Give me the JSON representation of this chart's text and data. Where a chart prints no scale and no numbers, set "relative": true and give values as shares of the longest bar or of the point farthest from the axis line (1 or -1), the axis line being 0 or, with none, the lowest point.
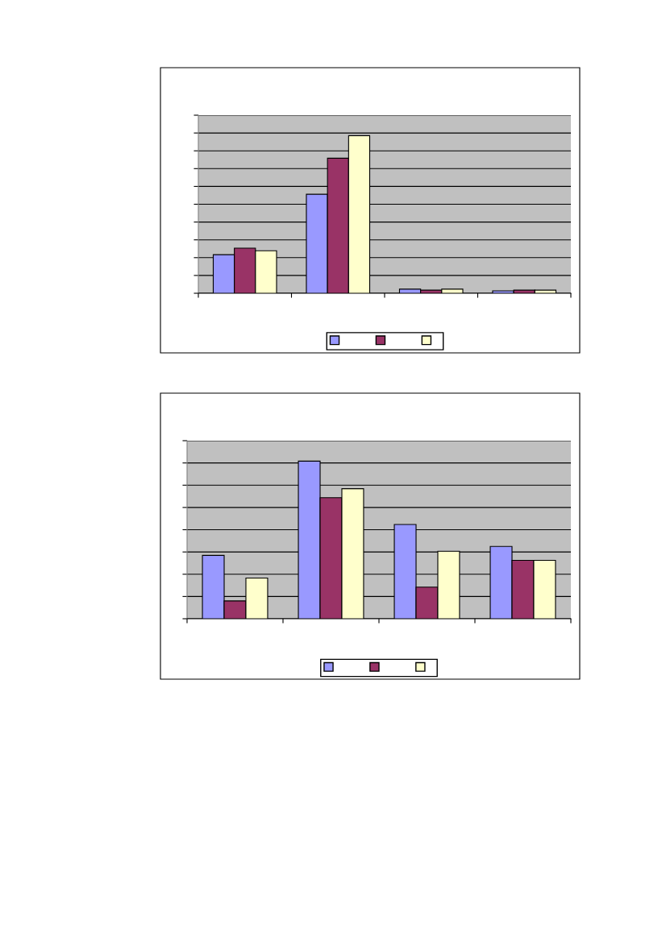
{
  "chart_data": [
    {
      "type": "bar",
      "relative": true,
      "categories": [
        null,
        null,
        null,
        null
      ],
      "grid": "y",
      "series": [
        {
          "color": "#9999ff",
          "values": [
            0.245,
            0.628,
            0.026,
            0.015
          ]
        },
        {
          "color": "#993366",
          "values": [
            0.286,
            0.857,
            0.02,
            0.02
          ]
        },
        {
          "color": "#ffffcc",
          "values": [
            0.27,
            1,
            0.026,
            0.02
          ]
        }
      ]
    },
    {
      "type": "bar",
      "relative": true,
      "categories": [
        null,
        null,
        null,
        null
      ],
      "grid": "y",
      "series": [
        {
          "color": "#9999ff",
          "values": [
            0.402,
            1,
            0.598,
            0.459
          ]
        },
        {
          "color": "#993366",
          "values": [
            0.113,
            0.768,
            0.201,
            0.371
          ]
        },
        {
          "color": "#ffffcc",
          "values": [
            0.258,
            0.825,
            0.428,
            0.371
          ]
        }
      ]
    }
  ]
}
